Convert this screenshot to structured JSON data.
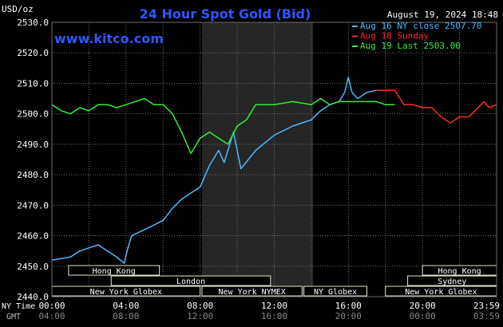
{
  "header": {
    "unit": "USD/oz",
    "title": "24 Hour Spot Gold (Bid)",
    "date": "August 19, 2024 18:48",
    "site": "www.kitco.com"
  },
  "colors": {
    "background": "#000000",
    "grid": "#6e6e6e",
    "title": "#3355ff",
    "aug16": "#4db8ff",
    "aug18": "#ff2a2a",
    "aug19": "#33ee33",
    "session_fill": "#e8e6cc",
    "highlight": "#262626"
  },
  "chart_data": {
    "type": "line",
    "title": "24 Hour Spot Gold (Bid)",
    "ylabel": "USD/oz",
    "ylim": [
      2440,
      2530
    ],
    "yticks": [
      "2530.0",
      "2520.0",
      "2510.0",
      "2500.0",
      "2490.0",
      "2480.0",
      "2470.0",
      "2460.0",
      "2450.0",
      "2440.0"
    ],
    "xlim": [
      0,
      24
    ],
    "xticks_ny": [
      "00:00",
      "04:00",
      "08:00",
      "12:00",
      "16:00",
      "20:00",
      "23:59"
    ],
    "xticks_gmt": [
      "04:00",
      "08:00",
      "12:00",
      "16:00",
      "20:00",
      "00:00",
      "03:59"
    ],
    "xaxis_label_ny": "NY Time",
    "xaxis_label_gmt": "GMT",
    "highlight_range": [
      8.1,
      14.1
    ],
    "grid": true,
    "legend_position": "top-right",
    "legend": [
      {
        "label": "Aug 16 NY close 2507.70",
        "color": "#4db8ff"
      },
      {
        "label": "Aug 18 Sunday",
        "color": "#ff2a2a"
      },
      {
        "label": "Aug 19 Last 2503.00",
        "color": "#33ee33"
      }
    ],
    "series": [
      {
        "name": "Aug 16 NY close 2507.70",
        "color": "#4db8ff",
        "x": [
          0,
          1,
          1.5,
          2,
          2.5,
          3,
          3.5,
          3.9,
          4.1,
          4.3,
          5,
          6,
          6.5,
          7,
          7.5,
          8,
          8.5,
          9,
          9.3,
          9.8,
          10.2,
          10.6,
          11,
          12,
          13,
          14,
          14.5,
          15,
          15.5,
          15.8,
          16,
          16.2,
          16.5,
          17,
          17.5
        ],
        "y": [
          2452,
          2453,
          2455,
          2456,
          2457,
          2455,
          2453,
          2451,
          2456,
          2460,
          2462,
          2465,
          2469,
          2472,
          2474,
          2476,
          2483,
          2488,
          2484,
          2494,
          2482,
          2485,
          2488,
          2493,
          2496,
          2498,
          2501,
          2503,
          2504,
          2507,
          2512,
          2507,
          2505,
          2507,
          2507.7
        ]
      },
      {
        "name": "Aug 18 Sunday",
        "color": "#ff2a2a",
        "x": [
          17.5,
          18.5,
          19,
          19.5,
          20,
          20.5,
          21,
          21.5,
          22,
          22.5,
          23,
          23.3,
          23.6,
          24
        ],
        "y": [
          2507.7,
          2507.7,
          2503,
          2503,
          2502,
          2502,
          2499,
          2497,
          2499,
          2499,
          2502,
          2504,
          2502,
          2503
        ]
      },
      {
        "name": "Aug 19 Last 2503.00",
        "color": "#33ee33",
        "x": [
          0,
          0.5,
          1,
          1.5,
          2,
          2.5,
          3,
          3.5,
          4,
          4.5,
          5,
          5.5,
          6,
          6.5,
          7,
          7.5,
          8,
          8.5,
          9,
          9.5,
          10,
          10.5,
          11,
          12,
          13,
          14,
          14.5,
          15,
          15.5,
          16,
          16.5,
          17,
          17.5,
          18,
          18.5
        ],
        "y": [
          2503,
          2501,
          2500,
          2502,
          2501,
          2503,
          2503,
          2502,
          2503,
          2504,
          2505,
          2503,
          2503,
          2500,
          2494,
          2487,
          2492,
          2494,
          2492,
          2490,
          2496,
          2498,
          2503,
          2503,
          2504,
          2503,
          2505,
          2503,
          2504,
          2504,
          2504,
          2504,
          2504,
          2503,
          2503
        ]
      }
    ],
    "sessions": [
      {
        "label": "Hong Kong",
        "row": 0,
        "start": 0.9,
        "end": 5.8
      },
      {
        "label": "London",
        "row": 1,
        "start": 3.2,
        "end": 11.8
      },
      {
        "label": "New York Globex",
        "row": 2,
        "start": 0,
        "end": 8.0
      },
      {
        "label": "New York NYMEX",
        "row": 2,
        "start": 8.1,
        "end": 13.5
      },
      {
        "label": "NY Globex",
        "row": 2,
        "start": 13.6,
        "end": 17.0
      },
      {
        "label": "Hong Kong",
        "row": 0,
        "start": 20.0,
        "end": 24.0
      },
      {
        "label": "Sydney",
        "row": 1,
        "start": 19.2,
        "end": 24.0
      },
      {
        "label": "New York Globex",
        "row": 2,
        "start": 18.0,
        "end": 24.0
      }
    ]
  }
}
